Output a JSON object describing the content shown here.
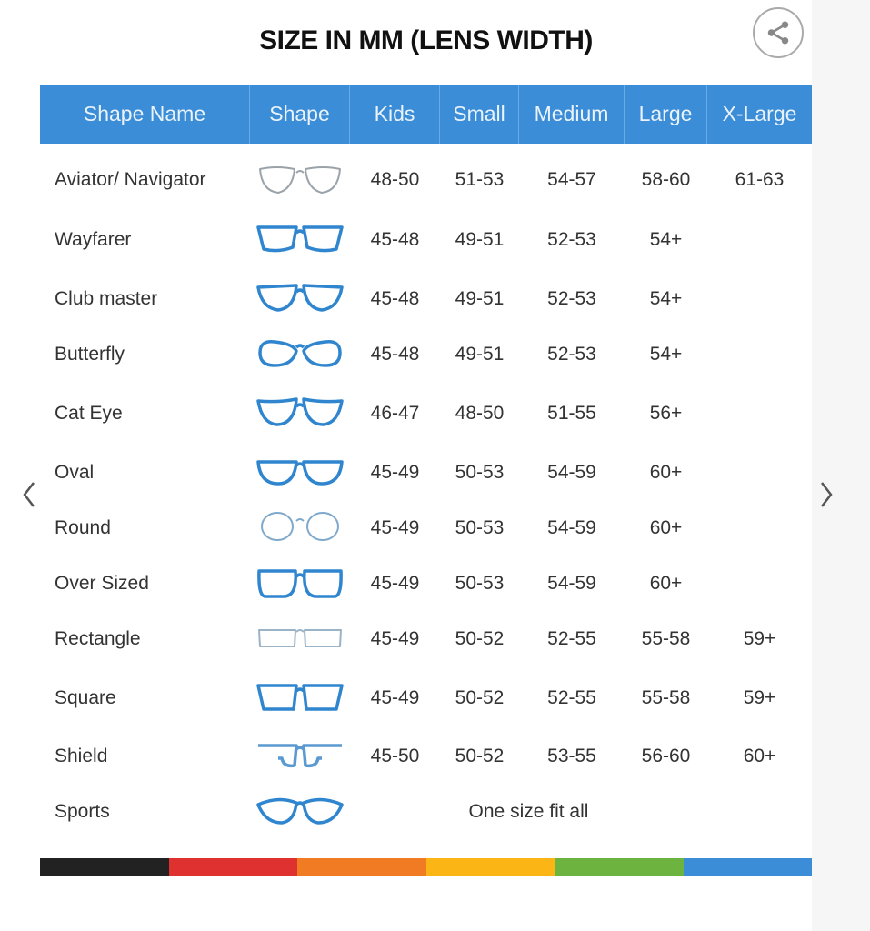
{
  "title": "SIZE IN MM (LENS WIDTH)",
  "share_icon": "share-icon",
  "columns": [
    "Shape Name",
    "Shape",
    "Kids",
    "Small",
    "Medium",
    "Large",
    "X-Large"
  ],
  "rows": [
    {
      "name": "Aviator/ Navigator",
      "shape": "aviator",
      "color": "#9aa3aa",
      "kids": "48-50",
      "small": "51-53",
      "medium": "54-57",
      "large": "58-60",
      "xlarge": "61-63"
    },
    {
      "name": "Wayfarer",
      "shape": "wayfarer",
      "color": "#2f86cf",
      "kids": "45-48",
      "small": "49-51",
      "medium": "52-53",
      "large": "54+",
      "xlarge": ""
    },
    {
      "name": "Club master",
      "shape": "clubmaster",
      "color": "#2f86cf",
      "kids": "45-48",
      "small": "49-51",
      "medium": "52-53",
      "large": "54+",
      "xlarge": ""
    },
    {
      "name": "Butterfly",
      "shape": "butterfly",
      "color": "#2f86cf",
      "kids": "45-48",
      "small": "49-51",
      "medium": "52-53",
      "large": "54+",
      "xlarge": ""
    },
    {
      "name": "Cat Eye",
      "shape": "cateye",
      "color": "#2f86cf",
      "kids": "46-47",
      "small": "48-50",
      "medium": "51-55",
      "large": "56+",
      "xlarge": ""
    },
    {
      "name": "Oval",
      "shape": "oval",
      "color": "#2f86cf",
      "kids": "45-49",
      "small": "50-53",
      "medium": "54-59",
      "large": "60+",
      "xlarge": ""
    },
    {
      "name": "Round",
      "shape": "round",
      "color": "#7fa9cc",
      "kids": "45-49",
      "small": "50-53",
      "medium": "54-59",
      "large": "60+",
      "xlarge": ""
    },
    {
      "name": "Over Sized",
      "shape": "oversized",
      "color": "#2f86cf",
      "kids": "45-49",
      "small": "50-53",
      "medium": "54-59",
      "large": "60+",
      "xlarge": ""
    },
    {
      "name": "Rectangle",
      "shape": "rectangle",
      "color": "#9ab3c6",
      "kids": "45-49",
      "small": "50-52",
      "medium": "52-55",
      "large": "55-58",
      "xlarge": "59+"
    },
    {
      "name": "Square",
      "shape": "square",
      "color": "#2f86cf",
      "kids": "45-49",
      "small": "50-52",
      "medium": "52-55",
      "large": "55-58",
      "xlarge": "59+"
    },
    {
      "name": "Shield",
      "shape": "shield",
      "color": "#5a9ad0",
      "kids": "45-50",
      "small": "50-52",
      "medium": "53-55",
      "large": "56-60",
      "xlarge": "60+"
    },
    {
      "name": "Sports",
      "shape": "sports",
      "color": "#2f86cf",
      "merged": "One size fit all"
    }
  ],
  "color_bar": [
    "#222222",
    "#e03131",
    "#f07b22",
    "#fbb615",
    "#6db33f",
    "#3a8dd6"
  ],
  "nav": {
    "prev_icon": "chevron-left-icon",
    "next_icon": "chevron-right-icon"
  }
}
